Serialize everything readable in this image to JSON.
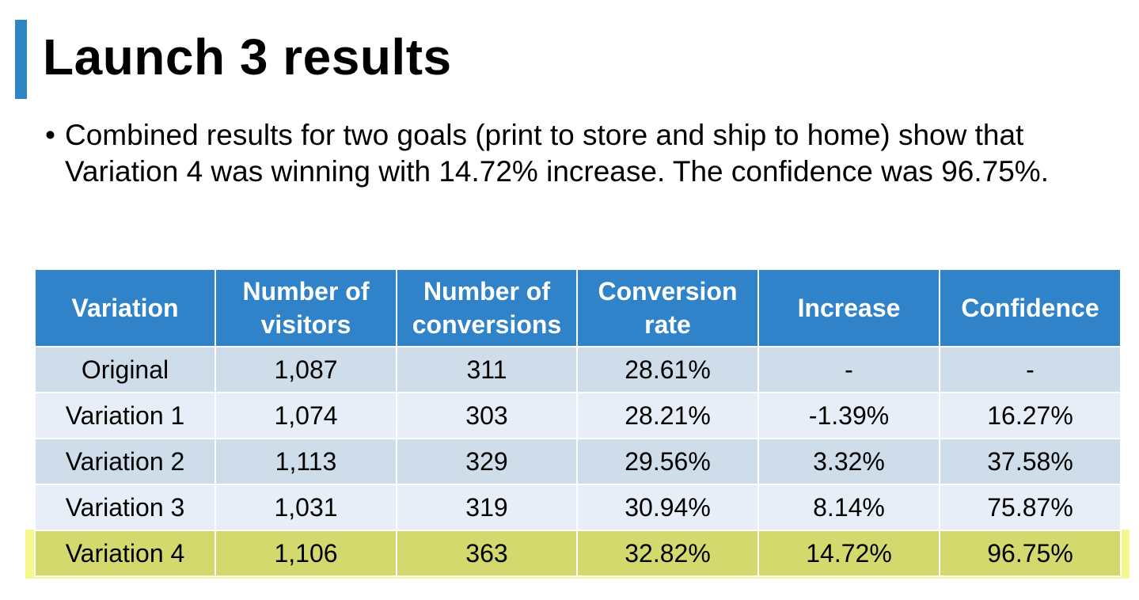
{
  "title": "Launch 3 results",
  "bullet": {
    "symbol": "•",
    "text": "Combined results for two goals (print to store and ship to home) show that Variation 4 was winning with 14.72% increase. The confidence was 96.75%."
  },
  "table": {
    "headers": [
      "Variation",
      "Number of visitors",
      "Number of conversions",
      "Conversion rate",
      "Increase",
      "Confidence"
    ],
    "rows": [
      [
        "Original",
        "1,087",
        "311",
        "28.61%",
        "-",
        "-"
      ],
      [
        "Variation 1",
        "1,074",
        "303",
        "28.21%",
        "-1.39%",
        "16.27%"
      ],
      [
        "Variation 2",
        "1,113",
        "329",
        "29.56%",
        "3.32%",
        "37.58%"
      ],
      [
        "Variation 3",
        "1,031",
        "319",
        "30.94%",
        "8.14%",
        "75.87%"
      ],
      [
        "Variation 4",
        "1,106",
        "363",
        "32.82%",
        "14.72%",
        "96.75%"
      ]
    ],
    "highlighted_row": "Variation 4"
  },
  "colors": {
    "accent": "#2e86c6",
    "header_bg": "#3083c8",
    "row_dark": "#cfdcea",
    "row_light": "#e8eef7",
    "highlight": "#d4d96e",
    "highlight_glow": "#f6f78c"
  }
}
